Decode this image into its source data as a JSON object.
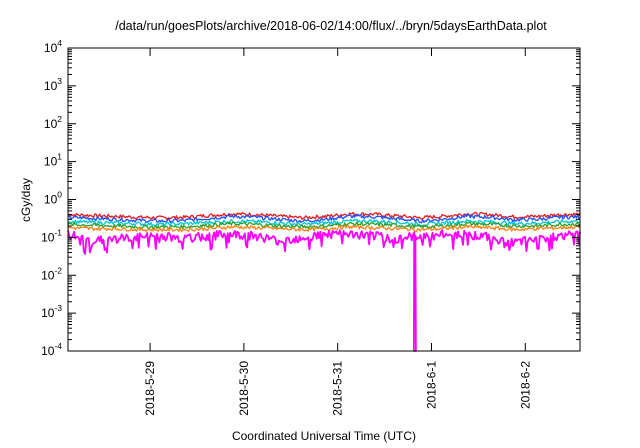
{
  "chart_data": {
    "type": "line",
    "title": "/data/run/goesPlots/archive/2018-06-02/14:00/flux/../bryn/5daysEarthData.plot",
    "xlabel": "Coordinated Universal Time (UTC)",
    "ylabel": "cGy/day",
    "yscale": "log",
    "ylim": [
      0.0001,
      10000
    ],
    "y_ticks": [
      {
        "base": "10",
        "exp": "-4",
        "value": 0.0001
      },
      {
        "base": "10",
        "exp": "-3",
        "value": 0.001
      },
      {
        "base": "10",
        "exp": "-2",
        "value": 0.01
      },
      {
        "base": "10",
        "exp": "-1",
        "value": 0.1
      },
      {
        "base": "10",
        "exp": "0",
        "value": 1
      },
      {
        "base": "10",
        "exp": "1",
        "value": 10
      },
      {
        "base": "10",
        "exp": "2",
        "value": 100
      },
      {
        "base": "10",
        "exp": "3",
        "value": 1000
      },
      {
        "base": "10",
        "exp": "4",
        "value": 10000
      }
    ],
    "xlim": [
      "2018-05-28T03:00",
      "2018-06-02T14:00"
    ],
    "x_ticks": [
      {
        "label": "2018-5-29",
        "value": "2018-05-29T00:00"
      },
      {
        "label": "2018-5-30",
        "value": "2018-05-30T00:00"
      },
      {
        "label": "2018-5-31",
        "value": "2018-05-31T00:00"
      },
      {
        "label": "2018-6-1",
        "value": "2018-06-01T00:00"
      },
      {
        "label": "2018-6-2",
        "value": "2018-06-02T00:00"
      }
    ],
    "grid": false,
    "legend": "none",
    "x": [
      "2018-05-28T03:00",
      "2018-05-28T09:00",
      "2018-05-28T15:00",
      "2018-05-28T21:00",
      "2018-05-29T03:00",
      "2018-05-29T09:00",
      "2018-05-29T15:00",
      "2018-05-29T21:00",
      "2018-05-30T03:00",
      "2018-05-30T09:00",
      "2018-05-30T15:00",
      "2018-05-30T21:00",
      "2018-05-31T03:00",
      "2018-05-31T09:00",
      "2018-05-31T15:00",
      "2018-05-31T21:00",
      "2018-06-01T03:00",
      "2018-06-01T09:00",
      "2018-06-01T15:00",
      "2018-06-01T21:00",
      "2018-06-02T03:00",
      "2018-06-02T09:00",
      "2018-06-02T14:00"
    ],
    "series": [
      {
        "color": "#e41a1c",
        "values": [
          0.4,
          0.38,
          0.36,
          0.34,
          0.33,
          0.34,
          0.38,
          0.42,
          0.4,
          0.36,
          0.33,
          0.36,
          0.42,
          0.41,
          0.37,
          0.33,
          0.36,
          0.42,
          0.4,
          0.35,
          0.36,
          0.4,
          0.41
        ]
      },
      {
        "color": "#1f4fff",
        "values": [
          0.34,
          0.32,
          0.3,
          0.28,
          0.27,
          0.28,
          0.32,
          0.36,
          0.34,
          0.3,
          0.27,
          0.3,
          0.36,
          0.35,
          0.31,
          0.27,
          0.3,
          0.36,
          0.34,
          0.29,
          0.3,
          0.34,
          0.35
        ]
      },
      {
        "color": "#00c8d0",
        "values": [
          0.26,
          0.25,
          0.24,
          0.23,
          0.22,
          0.23,
          0.25,
          0.27,
          0.26,
          0.24,
          0.22,
          0.24,
          0.27,
          0.27,
          0.25,
          0.22,
          0.24,
          0.27,
          0.26,
          0.23,
          0.24,
          0.26,
          0.27
        ]
      },
      {
        "color": "#2ca02c",
        "values": [
          0.22,
          0.21,
          0.2,
          0.19,
          0.19,
          0.19,
          0.21,
          0.23,
          0.22,
          0.2,
          0.19,
          0.2,
          0.23,
          0.22,
          0.21,
          0.19,
          0.2,
          0.23,
          0.22,
          0.2,
          0.2,
          0.22,
          0.23
        ]
      },
      {
        "color": "#ff7f0e",
        "values": [
          0.18,
          0.17,
          0.17,
          0.16,
          0.16,
          0.16,
          0.17,
          0.19,
          0.18,
          0.17,
          0.16,
          0.17,
          0.19,
          0.18,
          0.17,
          0.16,
          0.17,
          0.19,
          0.18,
          0.16,
          0.17,
          0.18,
          0.19
        ]
      },
      {
        "color": "#ff00ff",
        "values": [
          0.12,
          0.08,
          0.09,
          0.1,
          0.11,
          0.09,
          0.11,
          0.12,
          0.11,
          0.08,
          0.1,
          0.12,
          0.12,
          0.11,
          0.09,
          0.11,
          0.12,
          0.12,
          0.1,
          0.07,
          0.09,
          0.11,
          0.12
        ]
      }
    ],
    "annotations": [
      {
        "series_color": "#ff00ff",
        "x": "2018-05-31T19:30",
        "y": 0.0001,
        "note_type": "dropout"
      }
    ]
  }
}
